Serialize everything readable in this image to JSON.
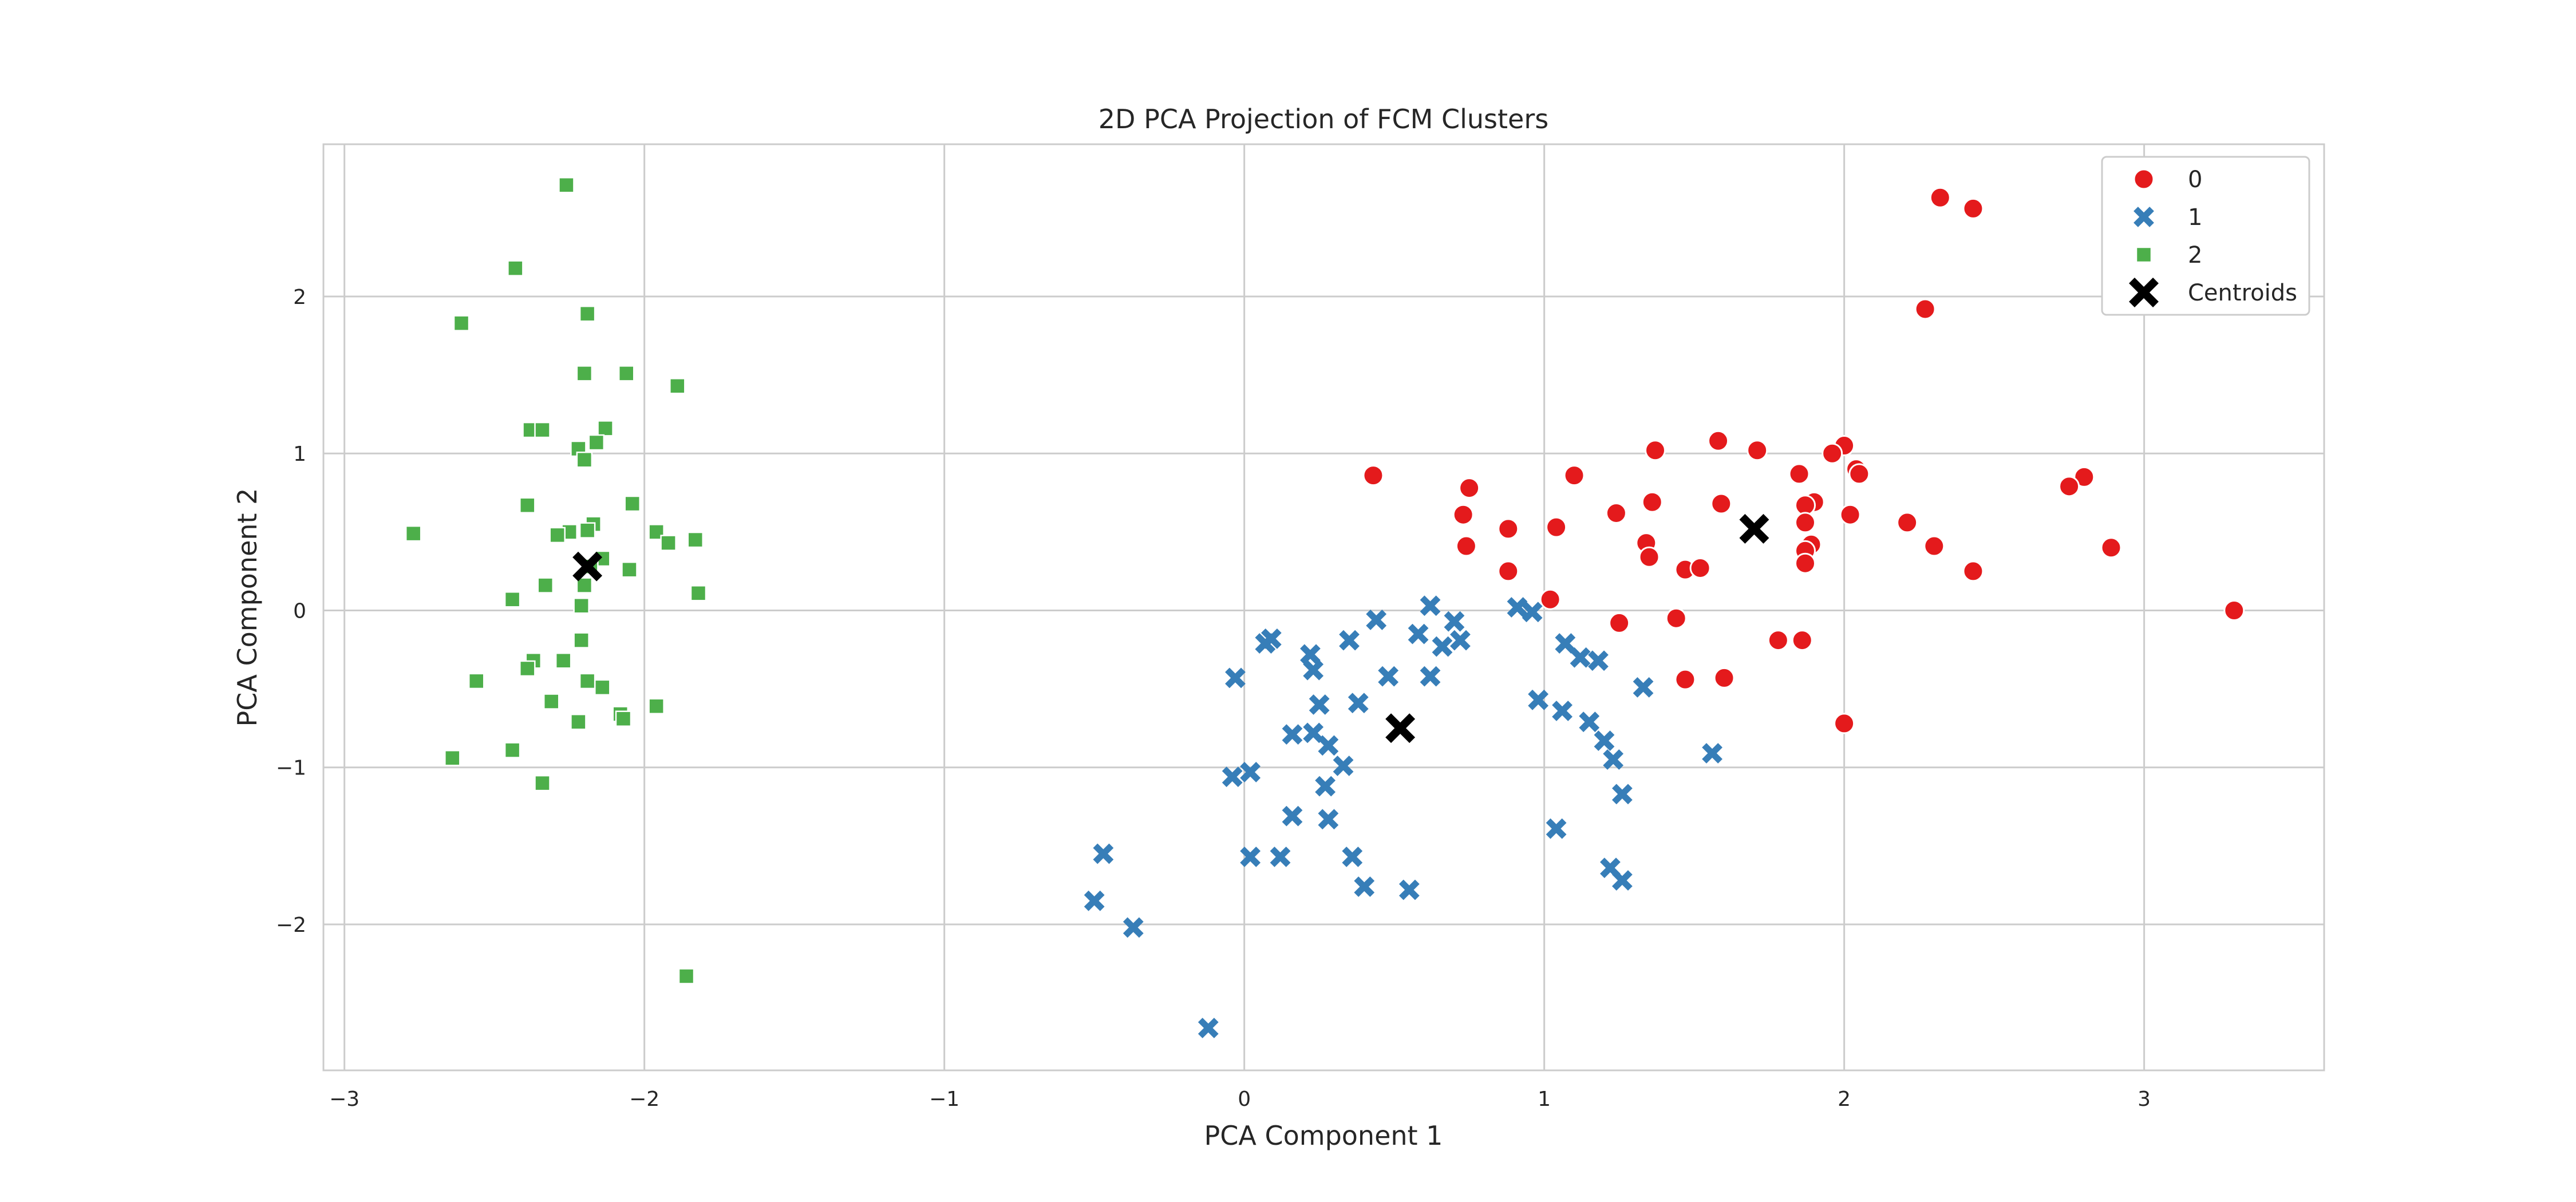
{
  "chart_data": {
    "type": "scatter",
    "title": "2D PCA Projection of FCM Clusters",
    "xlabel": "PCA Component 1",
    "ylabel": "PCA Component 2",
    "xlim": [
      -3.07,
      3.6
    ],
    "ylim": [
      -2.93,
      2.97
    ],
    "xticks": [
      -3,
      -2,
      -1,
      0,
      1,
      2,
      3
    ],
    "xtick_labels": [
      "−3",
      "−2",
      "−1",
      "0",
      "1",
      "2",
      "3"
    ],
    "yticks": [
      -2,
      -1,
      0,
      1,
      2
    ],
    "ytick_labels": [
      "−2",
      "−1",
      "0",
      "1",
      "2"
    ],
    "grid": true,
    "legend_position": "top-right",
    "series": [
      {
        "name": "0",
        "marker": "circle",
        "color": "#e41a1c",
        "points": [
          [
            2.32,
            2.63
          ],
          [
            2.43,
            2.56
          ],
          [
            2.27,
            1.92
          ],
          [
            1.58,
            1.08
          ],
          [
            2.0,
            1.05
          ],
          [
            1.37,
            1.02
          ],
          [
            1.71,
            1.02
          ],
          [
            1.96,
            1.0
          ],
          [
            2.04,
            0.9
          ],
          [
            2.05,
            0.87
          ],
          [
            0.43,
            0.86
          ],
          [
            1.1,
            0.86
          ],
          [
            1.85,
            0.87
          ],
          [
            2.8,
            0.85
          ],
          [
            2.75,
            0.79
          ],
          [
            0.75,
            0.78
          ],
          [
            1.36,
            0.69
          ],
          [
            1.59,
            0.68
          ],
          [
            1.9,
            0.69
          ],
          [
            1.87,
            0.67
          ],
          [
            1.24,
            0.62
          ],
          [
            0.73,
            0.61
          ],
          [
            2.02,
            0.61
          ],
          [
            1.87,
            0.56
          ],
          [
            2.21,
            0.56
          ],
          [
            1.04,
            0.53
          ],
          [
            0.88,
            0.52
          ],
          [
            1.34,
            0.43
          ],
          [
            1.89,
            0.42
          ],
          [
            1.87,
            0.38
          ],
          [
            0.74,
            0.41
          ],
          [
            2.3,
            0.41
          ],
          [
            2.89,
            0.4
          ],
          [
            1.35,
            0.34
          ],
          [
            1.87,
            0.3
          ],
          [
            1.47,
            0.26
          ],
          [
            1.52,
            0.27
          ],
          [
            0.88,
            0.25
          ],
          [
            2.43,
            0.25
          ],
          [
            1.02,
            0.07
          ],
          [
            1.25,
            -0.08
          ],
          [
            1.44,
            -0.05
          ],
          [
            3.3,
            0.0
          ],
          [
            1.78,
            -0.19
          ],
          [
            1.86,
            -0.19
          ],
          [
            1.47,
            -0.44
          ],
          [
            1.6,
            -0.43
          ],
          [
            2.0,
            -0.72
          ]
        ]
      },
      {
        "name": "1",
        "marker": "x",
        "color": "#377eb8",
        "points": [
          [
            0.62,
            0.03
          ],
          [
            0.91,
            0.02
          ],
          [
            0.96,
            -0.01
          ],
          [
            0.44,
            -0.06
          ],
          [
            0.7,
            -0.07
          ],
          [
            0.58,
            -0.15
          ],
          [
            0.09,
            -0.18
          ],
          [
            0.07,
            -0.21
          ],
          [
            0.72,
            -0.19
          ],
          [
            0.35,
            -0.19
          ],
          [
            1.07,
            -0.21
          ],
          [
            0.66,
            -0.23
          ],
          [
            1.12,
            -0.3
          ],
          [
            1.18,
            -0.32
          ],
          [
            0.22,
            -0.28
          ],
          [
            0.23,
            -0.38
          ],
          [
            0.48,
            -0.42
          ],
          [
            0.62,
            -0.42
          ],
          [
            -0.03,
            -0.43
          ],
          [
            1.33,
            -0.49
          ],
          [
            0.98,
            -0.57
          ],
          [
            0.38,
            -0.59
          ],
          [
            0.25,
            -0.6
          ],
          [
            1.06,
            -0.64
          ],
          [
            1.15,
            -0.71
          ],
          [
            0.16,
            -0.79
          ],
          [
            0.23,
            -0.78
          ],
          [
            0.28,
            -0.86
          ],
          [
            1.2,
            -0.83
          ],
          [
            1.56,
            -0.91
          ],
          [
            1.23,
            -0.95
          ],
          [
            0.33,
            -0.99
          ],
          [
            0.02,
            -1.03
          ],
          [
            -0.04,
            -1.06
          ],
          [
            0.27,
            -1.12
          ],
          [
            1.26,
            -1.17
          ],
          [
            0.16,
            -1.31
          ],
          [
            0.28,
            -1.33
          ],
          [
            1.04,
            -1.39
          ],
          [
            -0.47,
            -1.55
          ],
          [
            0.02,
            -1.57
          ],
          [
            0.12,
            -1.57
          ],
          [
            0.36,
            -1.57
          ],
          [
            1.22,
            -1.64
          ],
          [
            1.26,
            -1.72
          ],
          [
            0.4,
            -1.76
          ],
          [
            0.55,
            -1.78
          ],
          [
            -0.5,
            -1.85
          ],
          [
            -0.37,
            -2.02
          ],
          [
            -0.12,
            -2.66
          ]
        ]
      },
      {
        "name": "2",
        "marker": "square",
        "color": "#4daf4a",
        "points": [
          [
            -2.26,
            2.71
          ],
          [
            -2.43,
            2.18
          ],
          [
            -2.19,
            1.89
          ],
          [
            -2.61,
            1.83
          ],
          [
            -2.2,
            1.51
          ],
          [
            -2.06,
            1.51
          ],
          [
            -1.89,
            1.43
          ],
          [
            -2.13,
            1.16
          ],
          [
            -2.38,
            1.15
          ],
          [
            -2.34,
            1.15
          ],
          [
            -2.16,
            1.07
          ],
          [
            -2.22,
            1.03
          ],
          [
            -2.2,
            0.96
          ],
          [
            -2.39,
            0.67
          ],
          [
            -2.04,
            0.68
          ],
          [
            -2.17,
            0.55
          ],
          [
            -2.25,
            0.5
          ],
          [
            -2.29,
            0.48
          ],
          [
            -2.19,
            0.51
          ],
          [
            -1.96,
            0.5
          ],
          [
            -2.77,
            0.49
          ],
          [
            -1.83,
            0.45
          ],
          [
            -1.92,
            0.43
          ],
          [
            -2.14,
            0.33
          ],
          [
            -2.18,
            0.28
          ],
          [
            -2.05,
            0.26
          ],
          [
            -2.33,
            0.16
          ],
          [
            -2.2,
            0.16
          ],
          [
            -2.44,
            0.07
          ],
          [
            -1.82,
            0.11
          ],
          [
            -2.21,
            0.03
          ],
          [
            -2.21,
            -0.19
          ],
          [
            -2.27,
            -0.32
          ],
          [
            -2.37,
            -0.32
          ],
          [
            -2.39,
            -0.37
          ],
          [
            -2.19,
            -0.45
          ],
          [
            -2.14,
            -0.49
          ],
          [
            -2.56,
            -0.45
          ],
          [
            -2.31,
            -0.58
          ],
          [
            -1.96,
            -0.61
          ],
          [
            -2.08,
            -0.66
          ],
          [
            -2.07,
            -0.69
          ],
          [
            -2.22,
            -0.71
          ],
          [
            -2.44,
            -0.89
          ],
          [
            -2.64,
            -0.94
          ],
          [
            -2.34,
            -1.1
          ],
          [
            -1.86,
            -2.33
          ]
        ]
      },
      {
        "name": "Centroids",
        "marker": "X",
        "color": "#000000",
        "points": [
          [
            1.7,
            0.52
          ],
          [
            0.52,
            -0.75
          ],
          [
            -2.19,
            0.28
          ]
        ]
      }
    ]
  }
}
